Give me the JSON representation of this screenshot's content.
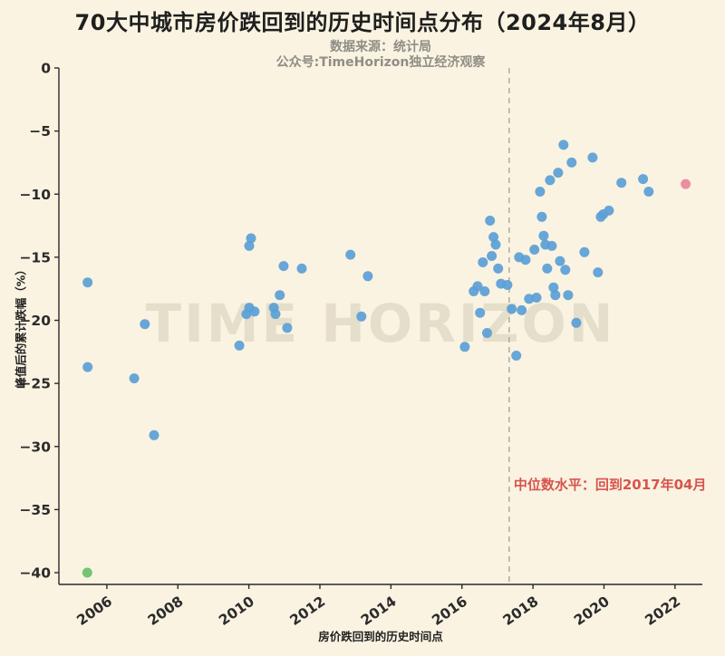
{
  "title": "70大中城市房价跌回到的历史时间点分布（2024年8月）",
  "subtitle1": "数据来源：统计局",
  "subtitle2": "公众号:TimeHorizon独立经济观察",
  "watermark": "TIME HORIZON",
  "colors": {
    "background": "#faf3e1",
    "blue": "#5a9fd6",
    "green": "#67c06b",
    "pink": "#e8879a",
    "annotation_red": "#d9534f",
    "axis": "#2b2b2b",
    "median_line_gray": "#a5a094"
  },
  "chart_data": {
    "type": "scatter",
    "title": "70大中城市房价跌回到的历史时间点分布（2024年8月）",
    "xlabel": "房价跌回到的历史时间点",
    "ylabel": "峰值后的累计跌幅（%）",
    "xlim": [
      2004.65,
      2022.77
    ],
    "ylim": [
      -40.93,
      0
    ],
    "xticks": [
      2006,
      2008,
      2010,
      2012,
      2014,
      2016,
      2018,
      2020,
      2022
    ],
    "yticks": [
      0,
      -5,
      -10,
      -15,
      -20,
      -25,
      -30,
      -35,
      -40
    ],
    "grid": false,
    "legend": false,
    "marker_radius": 5.5,
    "median_line": {
      "x": 2017.33,
      "label": "中位数水平：回到2017年04月"
    },
    "series": [
      {
        "name": "cities-blue",
        "color": "#5a9fd6",
        "points": [
          [
            2005.46,
            -17.0
          ],
          [
            2005.46,
            -23.7
          ],
          [
            2006.77,
            -24.6
          ],
          [
            2007.07,
            -20.3
          ],
          [
            2007.33,
            -29.1
          ],
          [
            2009.73,
            -22.0
          ],
          [
            2009.93,
            -19.5
          ],
          [
            2010.01,
            -19.0
          ],
          [
            2010.06,
            -13.5
          ],
          [
            2010.01,
            -14.1
          ],
          [
            2010.16,
            -19.3
          ],
          [
            2010.7,
            -19.0
          ],
          [
            2010.75,
            -19.5
          ],
          [
            2010.87,
            -18.0
          ],
          [
            2010.98,
            -15.7
          ],
          [
            2011.08,
            -20.6
          ],
          [
            2011.49,
            -15.9
          ],
          [
            2012.86,
            -14.8
          ],
          [
            2013.17,
            -19.7
          ],
          [
            2013.35,
            -16.5
          ],
          [
            2016.08,
            -22.1
          ],
          [
            2016.33,
            -17.7
          ],
          [
            2016.44,
            -17.3
          ],
          [
            2016.51,
            -19.4
          ],
          [
            2016.59,
            -15.4
          ],
          [
            2016.64,
            -17.7
          ],
          [
            2016.71,
            -21.0
          ],
          [
            2016.79,
            -12.1
          ],
          [
            2016.84,
            -14.9
          ],
          [
            2016.89,
            -13.4
          ],
          [
            2016.95,
            -14.0
          ],
          [
            2017.02,
            -15.9
          ],
          [
            2017.1,
            -17.1
          ],
          [
            2017.28,
            -17.2
          ],
          [
            2017.4,
            -19.1
          ],
          [
            2017.53,
            -22.8
          ],
          [
            2017.61,
            -15.0
          ],
          [
            2017.68,
            -19.2
          ],
          [
            2017.79,
            -15.2
          ],
          [
            2017.89,
            -18.3
          ],
          [
            2018.04,
            -14.4
          ],
          [
            2018.1,
            -18.2
          ],
          [
            2018.2,
            -9.8
          ],
          [
            2018.25,
            -11.8
          ],
          [
            2018.3,
            -13.3
          ],
          [
            2018.35,
            -14.0
          ],
          [
            2018.4,
            -15.9
          ],
          [
            2018.48,
            -8.9
          ],
          [
            2018.53,
            -14.1
          ],
          [
            2018.58,
            -17.4
          ],
          [
            2018.63,
            -18.0
          ],
          [
            2018.71,
            -8.3
          ],
          [
            2018.76,
            -15.3
          ],
          [
            2018.86,
            -6.1
          ],
          [
            2018.91,
            -16.0
          ],
          [
            2018.99,
            -18.0
          ],
          [
            2019.09,
            -7.5
          ],
          [
            2019.22,
            -20.2
          ],
          [
            2019.45,
            -14.6
          ],
          [
            2019.68,
            -7.1
          ],
          [
            2019.83,
            -16.2
          ],
          [
            2019.91,
            -11.8
          ],
          [
            2019.98,
            -11.6
          ],
          [
            2020.14,
            -11.3
          ],
          [
            2020.49,
            -9.1
          ],
          [
            2021.1,
            -8.8
          ],
          [
            2021.26,
            -9.8
          ]
        ]
      },
      {
        "name": "city-green",
        "color": "#67c06b",
        "points": [
          [
            2005.45,
            -40.0
          ]
        ]
      },
      {
        "name": "city-pink",
        "color": "#e8879a",
        "points": [
          [
            2022.3,
            -9.2
          ]
        ]
      }
    ]
  }
}
